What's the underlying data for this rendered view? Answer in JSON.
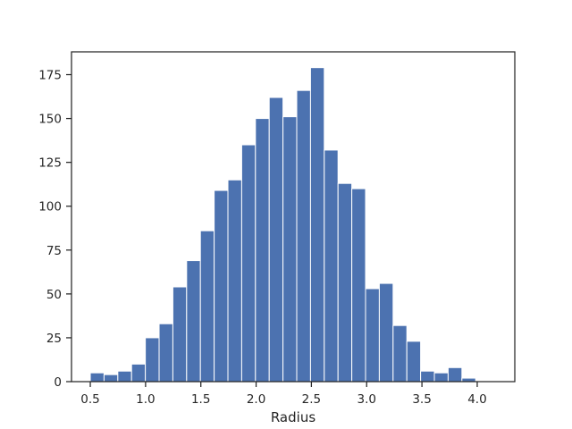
{
  "chart_data": {
    "type": "bar",
    "title": "",
    "xlabel": "Radius",
    "ylabel": "",
    "xlim": [
      0.33,
      4.34
    ],
    "ylim": [
      0,
      188
    ],
    "grid": false,
    "bar_color": "#4c72b0",
    "bar_edge_color": "#ffffff",
    "bin_start": 0.5,
    "bin_width": 0.1245,
    "values": [
      5,
      4,
      6,
      10,
      25,
      33,
      54,
      69,
      86,
      109,
      115,
      135,
      150,
      162,
      151,
      166,
      179,
      132,
      113,
      110,
      53,
      56,
      32,
      23,
      6,
      5,
      8,
      2
    ],
    "x_ticks": [
      {
        "value": 0.5,
        "label": "0.5"
      },
      {
        "value": 1.0,
        "label": "1.0"
      },
      {
        "value": 1.5,
        "label": "1.5"
      },
      {
        "value": 2.0,
        "label": "2.0"
      },
      {
        "value": 2.5,
        "label": "2.5"
      },
      {
        "value": 3.0,
        "label": "3.0"
      },
      {
        "value": 3.5,
        "label": "3.5"
      },
      {
        "value": 4.0,
        "label": "4.0"
      }
    ],
    "y_ticks": [
      {
        "value": 0,
        "label": "0"
      },
      {
        "value": 25,
        "label": "25"
      },
      {
        "value": 50,
        "label": "50"
      },
      {
        "value": 75,
        "label": "75"
      },
      {
        "value": 100,
        "label": "100"
      },
      {
        "value": 125,
        "label": "125"
      },
      {
        "value": 150,
        "label": "150"
      },
      {
        "value": 175,
        "label": "175"
      }
    ]
  }
}
